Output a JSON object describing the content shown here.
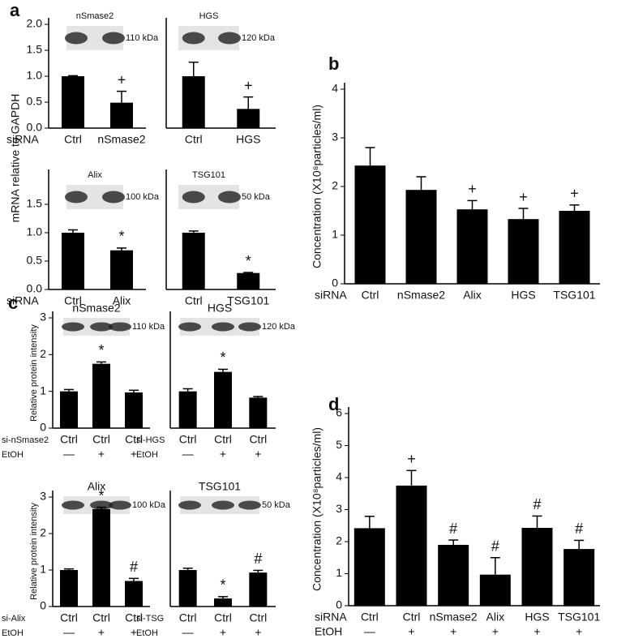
{
  "chart_data": [
    {
      "type": "bar",
      "panel": "a",
      "ylabel": "mRNA relative to GAPDH",
      "blot_label": "nSmase2",
      "blot_size": "110 kDa",
      "row_label": "siRNA",
      "categories": [
        "Ctrl",
        "nSmase2"
      ],
      "values": [
        1.0,
        0.49
      ],
      "errors": [
        0.01,
        0.22
      ],
      "annotations": [
        null,
        "+"
      ],
      "ylim": [
        0,
        2
      ],
      "yticks": [
        {
          "value": 0,
          "label": "0.0"
        },
        {
          "value": 0.5,
          "label": "0.5"
        },
        {
          "value": 1,
          "label": "1.0"
        },
        {
          "value": 1.5,
          "label": "1.5"
        },
        {
          "value": 2,
          "label": "2.0"
        }
      ],
      "color": "#000000"
    },
    {
      "type": "bar",
      "blot_label": "HGS",
      "blot_size": "120 kDa",
      "categories": [
        "Ctrl",
        "HGS"
      ],
      "values": [
        1.0,
        0.37
      ],
      "errors": [
        0.27,
        0.23
      ],
      "annotations": [
        null,
        "+"
      ],
      "ylim": [
        0,
        2
      ],
      "color": "#000000"
    },
    {
      "type": "bar",
      "blot_label": "Alix",
      "blot_size": "100 kDa",
      "row_label": "siRNA",
      "categories": [
        "Ctrl",
        "Alix"
      ],
      "values": [
        1.0,
        0.69
      ],
      "errors": [
        0.05,
        0.04
      ],
      "annotations": [
        null,
        "*"
      ],
      "ylim": [
        0,
        2
      ],
      "yticks": [
        {
          "value": 0,
          "label": "0.0"
        },
        {
          "value": 0.5,
          "label": "0.5"
        },
        {
          "value": 1,
          "label": "1.0"
        },
        {
          "value": 1.5,
          "label": "1.5"
        }
      ],
      "color": "#000000"
    },
    {
      "type": "bar",
      "blot_label": "TSG101",
      "blot_size": "50 kDa",
      "categories": [
        "Ctrl",
        "TSG101"
      ],
      "values": [
        1.0,
        0.29
      ],
      "errors": [
        0.03,
        0.01
      ],
      "annotations": [
        null,
        "*"
      ],
      "ylim": [
        0,
        2
      ],
      "color": "#000000"
    },
    {
      "type": "bar",
      "panel": "b",
      "ylabel": "Concentration (X10⁸particles/ml)",
      "row_label": "siRNA",
      "categories": [
        "Ctrl",
        "nSmase2",
        "Alix",
        "HGS",
        "TSG101"
      ],
      "values": [
        2.43,
        1.93,
        1.53,
        1.33,
        1.5
      ],
      "errors": [
        0.37,
        0.27,
        0.18,
        0.22,
        0.12
      ],
      "annotations": [
        null,
        null,
        "+",
        "+",
        "+"
      ],
      "ylim": [
        0,
        4
      ],
      "yticks": [
        0,
        1,
        2,
        3,
        4
      ],
      "color": "#000000"
    },
    {
      "type": "bar",
      "panel": "c",
      "ylabel": "Relative protein intensity",
      "blot_label": "nSmase2",
      "blot_size": "110 kDa",
      "row_label": "si-nSmase2",
      "treatment_label": "EtOH",
      "categories": [
        "Ctrl",
        "Ctrl",
        "Ctrl"
      ],
      "treatment": [
        "—",
        "+",
        "+"
      ],
      "values": [
        1.0,
        1.75,
        0.97
      ],
      "errors": [
        0.05,
        0.05,
        0.06
      ],
      "annotations": [
        null,
        "*",
        null
      ],
      "ylim": [
        0,
        3
      ],
      "yticks": [
        0,
        1,
        2,
        3
      ],
      "color": "#000000"
    },
    {
      "type": "bar",
      "blot_label": "HGS",
      "blot_size": "120 kDa",
      "row_label": "si-HGS",
      "treatment_label": "EtOH",
      "categories": [
        "Ctrl",
        "Ctrl",
        "Ctrl"
      ],
      "treatment": [
        "—",
        "+",
        "+"
      ],
      "values": [
        1.0,
        1.53,
        0.83
      ],
      "errors": [
        0.07,
        0.07,
        0.03
      ],
      "annotations": [
        null,
        "*",
        null
      ],
      "ylim": [
        0,
        3
      ],
      "color": "#000000"
    },
    {
      "type": "bar",
      "ylabel": "Relative protein intensity",
      "blot_label": "Alix",
      "blot_size": "100 kDa",
      "row_label": "si-Alix",
      "treatment_label": "EtOH",
      "categories": [
        "Ctrl",
        "Ctrl",
        "Ctrl"
      ],
      "treatment": [
        "—",
        "+",
        "+"
      ],
      "values": [
        1.0,
        2.67,
        0.7
      ],
      "errors": [
        0.03,
        0.05,
        0.07
      ],
      "annotations": [
        null,
        "*",
        "#"
      ],
      "ylim": [
        0,
        3
      ],
      "yticks": [
        0,
        1,
        2,
        3
      ],
      "color": "#000000"
    },
    {
      "type": "bar",
      "blot_label": "TSG101",
      "blot_size": "50 kDa",
      "row_label": "si-TSG",
      "treatment_label": "EtOH",
      "categories": [
        "Ctrl",
        "Ctrl",
        "Ctrl"
      ],
      "treatment": [
        "—",
        "+",
        "+"
      ],
      "values": [
        1.0,
        0.22,
        0.93
      ],
      "errors": [
        0.05,
        0.05,
        0.06
      ],
      "annotations": [
        null,
        "*",
        "#"
      ],
      "ylim": [
        0,
        3
      ],
      "color": "#000000"
    },
    {
      "type": "bar",
      "panel": "d",
      "ylabel": "Concentration (X10⁸particles/ml)",
      "row_label": "siRNA",
      "treatment_label": "EtOH",
      "categories": [
        "Ctrl",
        "Ctrl",
        "nSmase2",
        "Alix",
        "HGS",
        "TSG101"
      ],
      "treatment": [
        "—",
        "+",
        "+",
        "+",
        "+",
        "+"
      ],
      "values": [
        2.42,
        3.75,
        1.9,
        0.97,
        2.43,
        1.77
      ],
      "errors": [
        0.37,
        0.47,
        0.15,
        0.53,
        0.37,
        0.27
      ],
      "annotations": [
        null,
        "+",
        "#",
        "#",
        "#",
        "#"
      ],
      "ylim": [
        0,
        6
      ],
      "yticks": [
        0,
        1,
        2,
        3,
        4,
        5,
        6
      ],
      "color": "#000000"
    }
  ]
}
